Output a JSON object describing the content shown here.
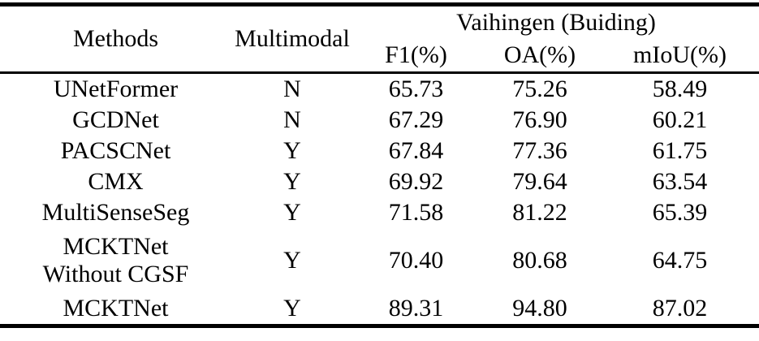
{
  "table": {
    "headers": {
      "methods": "Methods",
      "multimodal": "Multimodal",
      "group": "Vaihingen (Buiding)",
      "f1": "F1(%)",
      "oa": "OA(%)",
      "miou": "mIoU(%)"
    },
    "rows": [
      {
        "method": "UNetFormer",
        "multimodal": "N",
        "f1": "65.73",
        "oa": "75.26",
        "miou": "58.49"
      },
      {
        "method": "GCDNet",
        "multimodal": "N",
        "f1": "67.29",
        "oa": "76.90",
        "miou": "60.21"
      },
      {
        "method": "PACSCNet",
        "multimodal": "Y",
        "f1": "67.84",
        "oa": "77.36",
        "miou": "61.75"
      },
      {
        "method": "CMX",
        "multimodal": "Y",
        "f1": "69.92",
        "oa": "79.64",
        "miou": "63.54"
      },
      {
        "method": "MultiSenseSeg",
        "multimodal": "Y",
        "f1": "71.58",
        "oa": "81.22",
        "miou": "65.39"
      },
      {
        "method": "MCKTNet\nWithout CGSF",
        "multimodal": "Y",
        "f1": "70.40",
        "oa": "80.68",
        "miou": "64.75"
      },
      {
        "method": "MCKTNet",
        "multimodal": "Y",
        "f1": "89.31",
        "oa": "94.80",
        "miou": "87.02"
      }
    ],
    "colors": {
      "text": "#000000",
      "background": "#ffffff",
      "rule": "#000000"
    }
  }
}
